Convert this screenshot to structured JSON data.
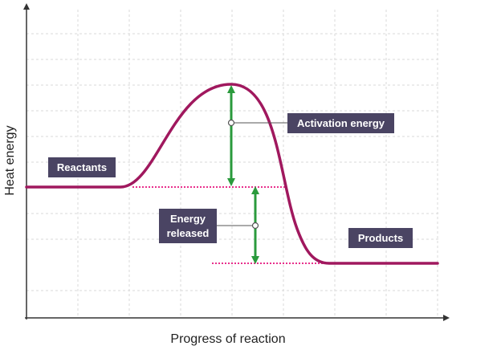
{
  "diagram": {
    "title": "",
    "x_axis_label": "Progress of reaction",
    "y_axis_label": "Heat energy",
    "labels": {
      "reactants": "Reactants",
      "products": "Products",
      "activation_energy": "Activation energy",
      "energy_released_line1": "Energy",
      "energy_released_line2": "released"
    },
    "colors": {
      "curve": "#a0185e",
      "dotted_reference": "#e8308c",
      "arrow": "#2a9a3c",
      "tag_background": "#4a4463",
      "grid": "#d8d8d8",
      "axis": "#333333"
    }
  }
}
